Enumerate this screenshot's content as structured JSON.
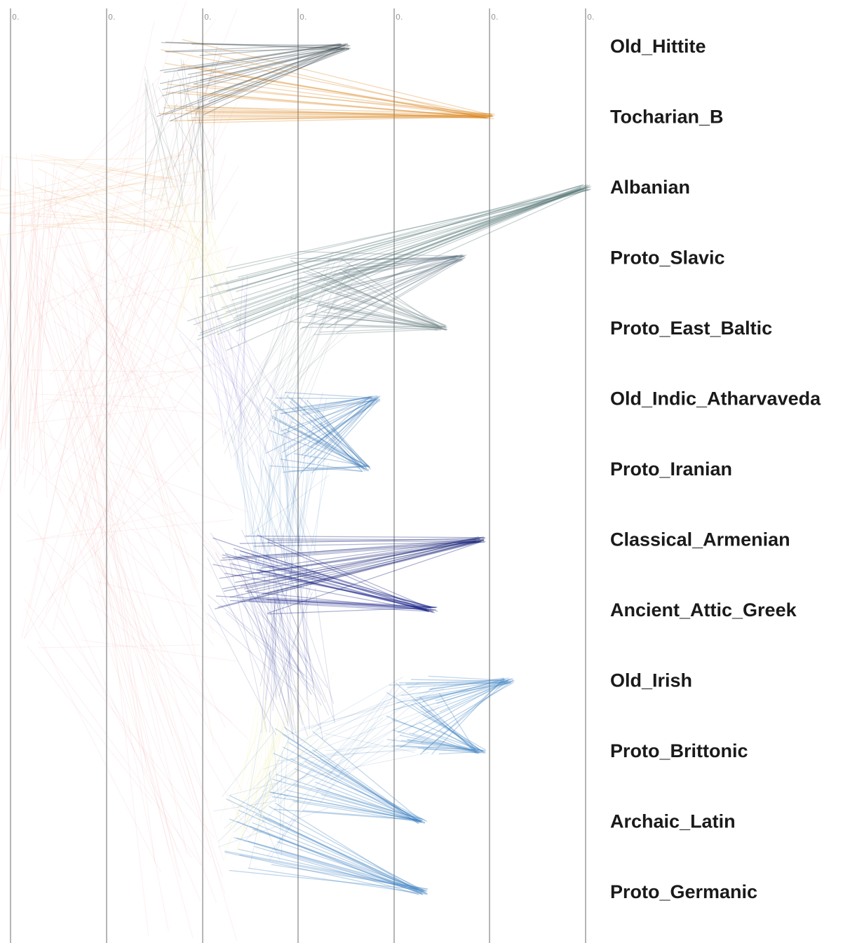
{
  "figure": {
    "axis_tick_labels": [
      "0.",
      "0.",
      "0.",
      "0.",
      "0.",
      "0.",
      "0."
    ],
    "taxa": [
      {
        "name": "Old_Hittite",
        "tip_depth": 3.5,
        "color": "#2f3d43"
      },
      {
        "name": "Tocharian_B",
        "tip_depth": 5.0,
        "color": "#d9821a"
      },
      {
        "name": "Albanian",
        "tip_depth": 6.0,
        "color": "#5a7a78"
      },
      {
        "name": "Proto_Slavic",
        "tip_depth": 4.7,
        "color": "#5a7080"
      },
      {
        "name": "Proto_East_Baltic",
        "tip_depth": 4.5,
        "color": "#6b8084"
      },
      {
        "name": "Old_Indic_Atharvaveda",
        "tip_depth": 3.8,
        "color": "#3b79b8"
      },
      {
        "name": "Proto_Iranian",
        "tip_depth": 3.7,
        "color": "#3b79b8"
      },
      {
        "name": "Classical_Armenian",
        "tip_depth": 4.9,
        "color": "#0a1670"
      },
      {
        "name": "Ancient_Attic_Greek",
        "tip_depth": 4.4,
        "color": "#0a1480"
      },
      {
        "name": "Old_Irish",
        "tip_depth": 5.2,
        "color": "#3a7fc0"
      },
      {
        "name": "Proto_Brittonic",
        "tip_depth": 4.9,
        "color": "#3a7fc0"
      },
      {
        "name": "Archaic_Latin",
        "tip_depth": 4.3,
        "color": "#3a7fc0"
      },
      {
        "name": "Proto_Germanic",
        "tip_depth": 4.3,
        "color": "#3a7fc0"
      }
    ],
    "clade_colors": {
      "root": "#f08a8a",
      "anatolian_tocharian": "#e08a20",
      "albanian_group": "#e8e070",
      "balto_slavic": "#6a5acd",
      "indo_iranian": "#3b79b8",
      "armenian_greek": "#0a1480",
      "italo_celtic_germanic": "#2f6fae"
    }
  }
}
